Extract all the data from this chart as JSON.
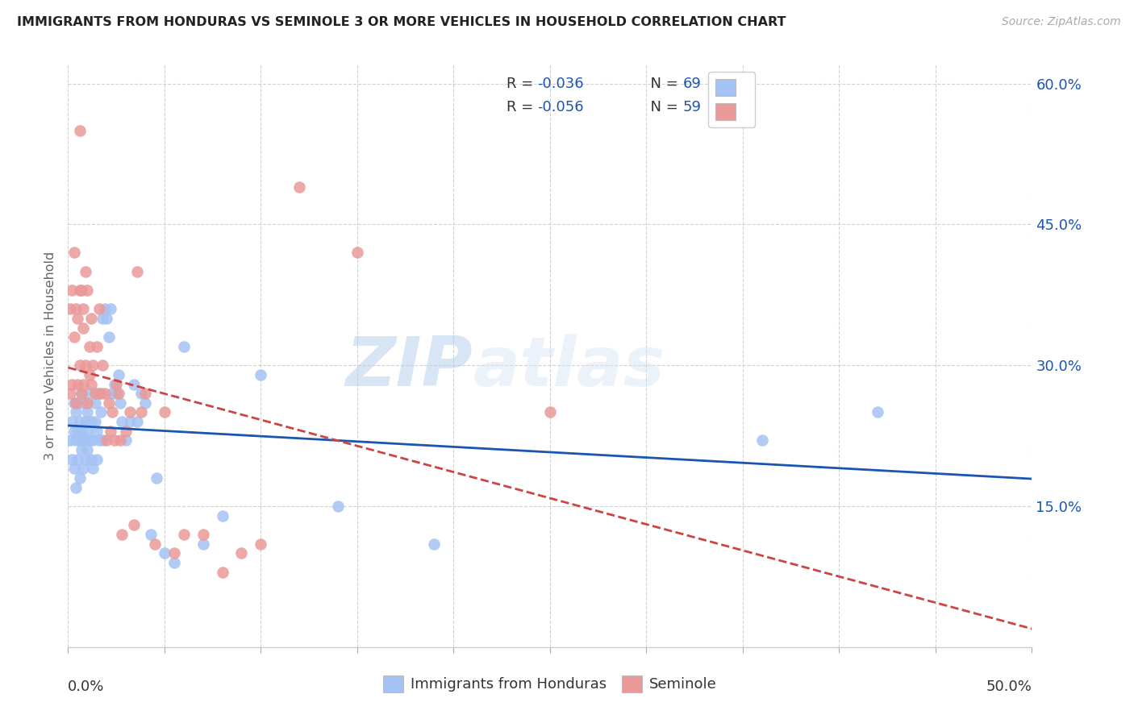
{
  "title": "IMMIGRANTS FROM HONDURAS VS SEMINOLE 3 OR MORE VEHICLES IN HOUSEHOLD CORRELATION CHART",
  "source": "Source: ZipAtlas.com",
  "ylabel": "3 or more Vehicles in Household",
  "xmin": 0.0,
  "xmax": 0.5,
  "ymin": 0.0,
  "ymax": 0.62,
  "yticks": [
    0.15,
    0.3,
    0.45,
    0.6
  ],
  "ytick_labels": [
    "15.0%",
    "30.0%",
    "45.0%",
    "60.0%"
  ],
  "xticks": [
    0.0,
    0.05,
    0.1,
    0.15,
    0.2,
    0.25,
    0.3,
    0.35,
    0.4,
    0.45,
    0.5
  ],
  "legend_r1": "R = -0.036",
  "legend_n1": "N = 69",
  "legend_r2": "R = -0.056",
  "legend_n2": "N = 59",
  "blue_color": "#a4c2f4",
  "pink_color": "#ea9999",
  "blue_line_color": "#1a56b0",
  "pink_line_color": "#cc4444",
  "text_color_blue": "#1a56b0",
  "legend_label1": "Immigrants from Honduras",
  "legend_label2": "Seminole",
  "watermark_zip": "ZIP",
  "watermark_atlas": "atlas",
  "blue_scatter_x": [
    0.001,
    0.002,
    0.002,
    0.003,
    0.003,
    0.003,
    0.004,
    0.004,
    0.004,
    0.005,
    0.005,
    0.005,
    0.006,
    0.006,
    0.006,
    0.007,
    0.007,
    0.007,
    0.008,
    0.008,
    0.008,
    0.009,
    0.009,
    0.01,
    0.01,
    0.01,
    0.011,
    0.011,
    0.012,
    0.012,
    0.013,
    0.013,
    0.014,
    0.014,
    0.015,
    0.015,
    0.016,
    0.016,
    0.017,
    0.018,
    0.018,
    0.019,
    0.02,
    0.021,
    0.022,
    0.023,
    0.024,
    0.025,
    0.026,
    0.027,
    0.028,
    0.03,
    0.032,
    0.034,
    0.036,
    0.038,
    0.04,
    0.043,
    0.046,
    0.05,
    0.055,
    0.06,
    0.07,
    0.08,
    0.1,
    0.14,
    0.19,
    0.36,
    0.42
  ],
  "blue_scatter_y": [
    0.22,
    0.2,
    0.24,
    0.19,
    0.23,
    0.26,
    0.17,
    0.22,
    0.25,
    0.2,
    0.23,
    0.26,
    0.18,
    0.22,
    0.24,
    0.21,
    0.23,
    0.27,
    0.19,
    0.22,
    0.26,
    0.24,
    0.2,
    0.21,
    0.25,
    0.23,
    0.22,
    0.27,
    0.2,
    0.24,
    0.22,
    0.19,
    0.26,
    0.24,
    0.23,
    0.2,
    0.27,
    0.22,
    0.25,
    0.22,
    0.35,
    0.36,
    0.35,
    0.33,
    0.36,
    0.27,
    0.28,
    0.27,
    0.29,
    0.26,
    0.24,
    0.22,
    0.24,
    0.28,
    0.24,
    0.27,
    0.26,
    0.12,
    0.18,
    0.1,
    0.09,
    0.32,
    0.11,
    0.14,
    0.29,
    0.15,
    0.11,
    0.22,
    0.25
  ],
  "pink_scatter_x": [
    0.001,
    0.001,
    0.002,
    0.002,
    0.003,
    0.003,
    0.004,
    0.004,
    0.005,
    0.005,
    0.006,
    0.006,
    0.006,
    0.007,
    0.007,
    0.008,
    0.008,
    0.008,
    0.009,
    0.009,
    0.01,
    0.01,
    0.011,
    0.011,
    0.012,
    0.012,
    0.013,
    0.014,
    0.015,
    0.016,
    0.017,
    0.018,
    0.019,
    0.02,
    0.021,
    0.022,
    0.023,
    0.024,
    0.025,
    0.026,
    0.027,
    0.028,
    0.03,
    0.032,
    0.034,
    0.036,
    0.038,
    0.04,
    0.045,
    0.05,
    0.055,
    0.06,
    0.07,
    0.08,
    0.09,
    0.1,
    0.12,
    0.15,
    0.25
  ],
  "pink_scatter_y": [
    0.27,
    0.36,
    0.28,
    0.38,
    0.33,
    0.42,
    0.26,
    0.36,
    0.35,
    0.28,
    0.55,
    0.3,
    0.38,
    0.27,
    0.38,
    0.34,
    0.28,
    0.36,
    0.3,
    0.4,
    0.38,
    0.26,
    0.32,
    0.29,
    0.35,
    0.28,
    0.3,
    0.27,
    0.32,
    0.36,
    0.27,
    0.3,
    0.27,
    0.22,
    0.26,
    0.23,
    0.25,
    0.22,
    0.28,
    0.27,
    0.22,
    0.12,
    0.23,
    0.25,
    0.13,
    0.4,
    0.25,
    0.27,
    0.11,
    0.25,
    0.1,
    0.12,
    0.12,
    0.08,
    0.1,
    0.11,
    0.49,
    0.42,
    0.25
  ]
}
